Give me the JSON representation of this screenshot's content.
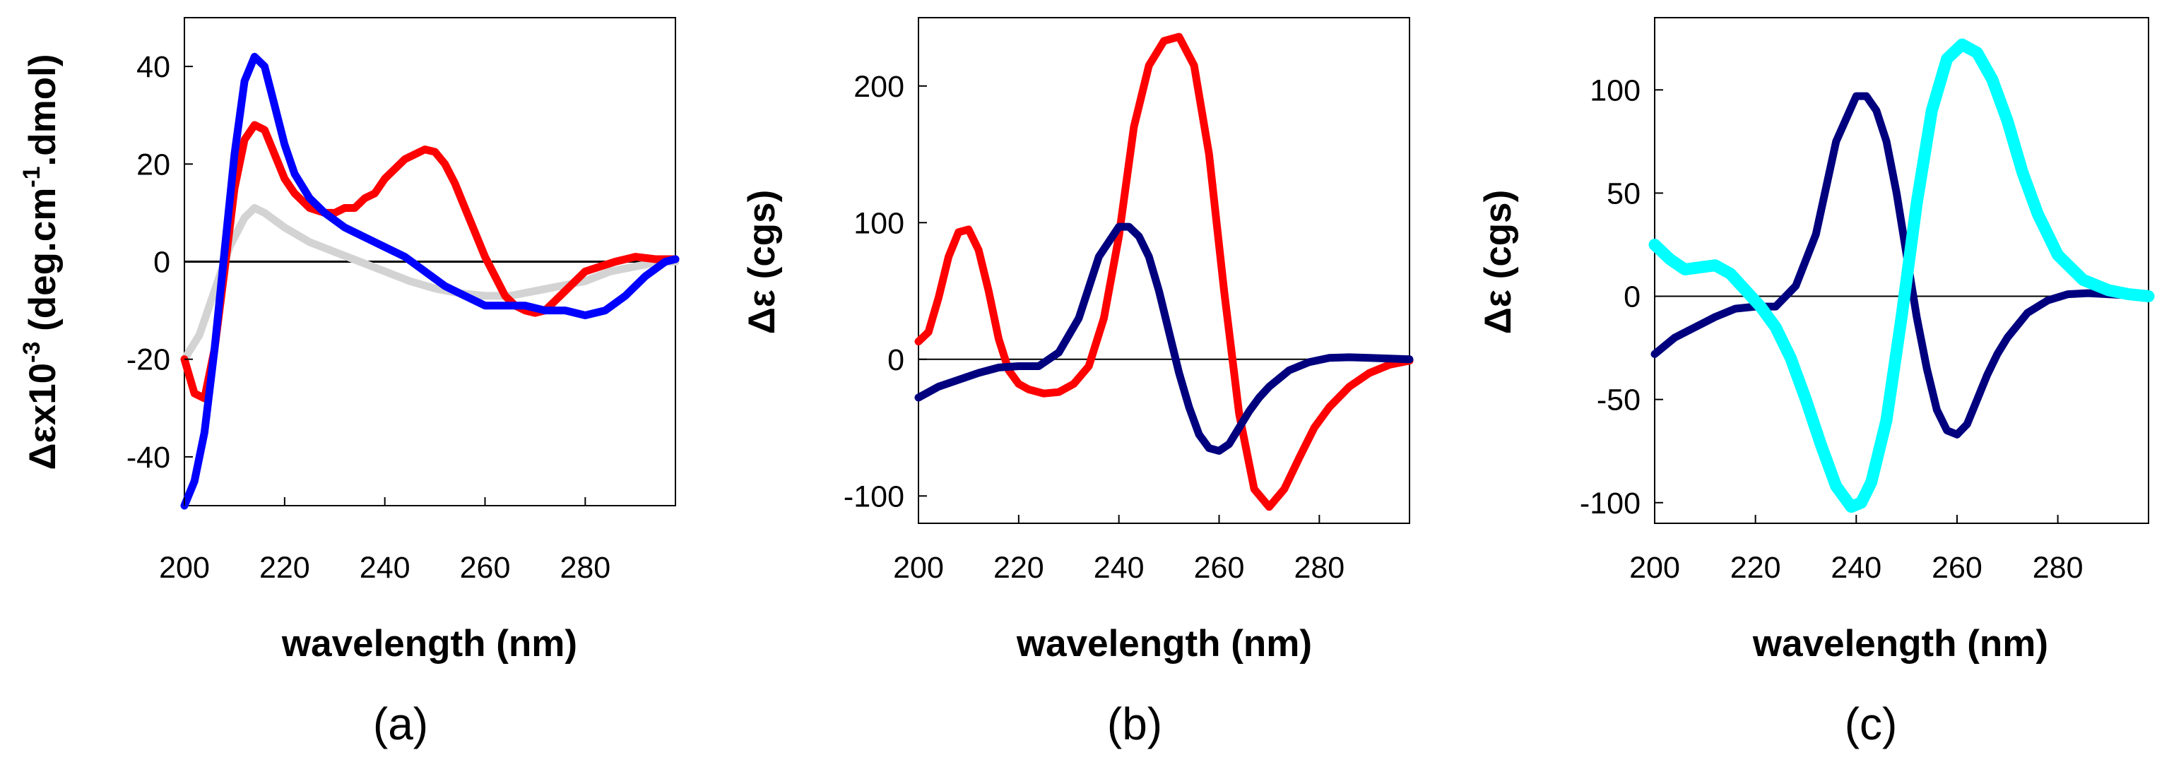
{
  "chart_data": [
    {
      "type": "line",
      "panel_label": "(a)",
      "xlabel": "wavelength (nm)",
      "ylabel_main": "Δεx10",
      "ylabel_exp1": "-3",
      "ylabel_mid": " (deg.cm",
      "ylabel_exp2": "-1",
      "ylabel_end": ".dmol)",
      "xlim": [
        200,
        298
      ],
      "ylim": [
        -50,
        50
      ],
      "xticks": [
        200,
        220,
        240,
        260,
        280
      ],
      "yticks": [
        -40,
        -20,
        0,
        20,
        40
      ],
      "grid": false,
      "zero_line": true,
      "series": [
        {
          "name": "gray",
          "color": "#d3d3d3",
          "x": [
            200,
            203,
            206,
            209,
            212,
            214,
            216,
            220,
            225,
            230,
            235,
            240,
            245,
            250,
            255,
            260,
            265,
            270,
            275,
            280,
            285,
            290,
            295,
            298
          ],
          "y": [
            -20,
            -15,
            -6,
            3,
            9,
            11,
            10,
            7,
            4,
            2,
            0,
            -2,
            -4,
            -5.5,
            -6.5,
            -7,
            -7,
            -6,
            -5,
            -4,
            -2,
            -1,
            0,
            0
          ]
        },
        {
          "name": "red",
          "color": "#ff0000",
          "x": [
            200,
            202,
            204,
            206,
            208,
            210,
            212,
            214,
            216,
            218,
            220,
            222,
            225,
            228,
            230,
            232,
            234,
            236,
            238,
            240,
            242,
            244,
            246,
            248,
            250,
            252,
            254,
            256,
            258,
            260,
            262,
            264,
            266,
            268,
            270,
            272,
            274,
            276,
            278,
            280,
            283,
            286,
            290,
            294,
            298
          ],
          "y": [
            -20,
            -27,
            -28,
            -18,
            -2,
            15,
            25,
            28,
            27,
            22,
            17,
            14,
            11,
            10,
            10,
            11,
            11,
            13,
            14,
            17,
            19,
            21,
            22,
            23,
            22.5,
            20,
            16,
            11,
            6,
            1,
            -3,
            -7,
            -9,
            -10,
            -10.5,
            -10,
            -8,
            -6,
            -4,
            -2,
            -1,
            0,
            1,
            0.5,
            0.5
          ]
        },
        {
          "name": "blue",
          "color": "#0000ff",
          "x": [
            200,
            202,
            204,
            206,
            208,
            210,
            212,
            214,
            216,
            218,
            220,
            222,
            225,
            228,
            232,
            236,
            240,
            244,
            248,
            252,
            256,
            260,
            264,
            268,
            272,
            276,
            280,
            284,
            288,
            292,
            296,
            298
          ],
          "y": [
            -50,
            -45,
            -35,
            -18,
            2,
            22,
            37,
            42,
            40,
            32,
            24,
            18,
            13,
            10,
            7,
            5,
            3,
            1,
            -2,
            -5,
            -7,
            -9,
            -9,
            -9,
            -10,
            -10,
            -11,
            -10,
            -7,
            -3,
            0,
            0.5
          ]
        }
      ]
    },
    {
      "type": "line",
      "panel_label": "(b)",
      "xlabel": "wavelength (nm)",
      "ylabel": "Δε (cgs)",
      "xlim": [
        200,
        298
      ],
      "ylim": [
        -120,
        250
      ],
      "xticks": [
        200,
        220,
        240,
        260,
        280
      ],
      "yticks": [
        -100,
        0,
        100,
        200
      ],
      "grid": false,
      "zero_line": true,
      "series": [
        {
          "name": "red",
          "color": "#ff0000",
          "x": [
            200,
            202,
            204,
            206,
            208,
            210,
            212,
            214,
            216,
            218,
            220,
            222,
            225,
            228,
            231,
            234,
            237,
            240,
            243,
            246,
            249,
            252,
            255,
            258,
            261,
            264,
            267,
            270,
            273,
            276,
            279,
            282,
            286,
            290,
            294,
            298
          ],
          "y": [
            13,
            20,
            45,
            75,
            93,
            95,
            80,
            50,
            15,
            -8,
            -18,
            -22,
            -25,
            -24,
            -18,
            -5,
            30,
            90,
            170,
            215,
            233,
            236,
            215,
            150,
            50,
            -40,
            -95,
            -108,
            -95,
            -72,
            -50,
            -35,
            -20,
            -10,
            -4,
            -1
          ]
        },
        {
          "name": "navy",
          "color": "#00007f",
          "x": [
            200,
            204,
            208,
            212,
            216,
            220,
            224,
            228,
            232,
            236,
            240,
            242,
            244,
            246,
            248,
            250,
            252,
            254,
            256,
            258,
            260,
            262,
            264,
            266,
            268,
            270,
            274,
            278,
            282,
            286,
            290,
            294,
            298
          ],
          "y": [
            -28,
            -20,
            -15,
            -10,
            -6,
            -5,
            -5,
            5,
            30,
            75,
            97,
            97,
            90,
            75,
            50,
            20,
            -10,
            -35,
            -55,
            -65,
            -67,
            -62,
            -50,
            -38,
            -28,
            -20,
            -8,
            -2,
            1,
            1.5,
            1,
            0.5,
            0
          ]
        }
      ]
    },
    {
      "type": "line",
      "panel_label": "(c)",
      "xlabel": "wavelength (nm)",
      "ylabel": "Δε (cgs)",
      "xlim": [
        200,
        298
      ],
      "ylim": [
        -110,
        135
      ],
      "xticks": [
        200,
        220,
        240,
        260,
        280
      ],
      "yticks": [
        -100,
        -50,
        0,
        50,
        100
      ],
      "grid": false,
      "zero_line": true,
      "series": [
        {
          "name": "navy",
          "color": "#00007f",
          "x": [
            200,
            204,
            208,
            212,
            216,
            220,
            224,
            228,
            232,
            236,
            240,
            242,
            244,
            246,
            248,
            250,
            252,
            254,
            256,
            258,
            260,
            262,
            264,
            266,
            268,
            270,
            274,
            278,
            282,
            286,
            290,
            294,
            298
          ],
          "y": [
            -28,
            -20,
            -15,
            -10,
            -6,
            -5,
            -5,
            5,
            30,
            75,
            97,
            97,
            90,
            75,
            50,
            20,
            -10,
            -35,
            -55,
            -65,
            -67,
            -62,
            -50,
            -38,
            -28,
            -20,
            -8,
            -2,
            1,
            1.5,
            1,
            0.5,
            0
          ]
        },
        {
          "name": "cyan",
          "color": "#00ffff",
          "x": [
            200,
            203,
            206,
            209,
            212,
            215,
            218,
            221,
            224,
            227,
            230,
            233,
            236,
            239,
            241,
            243,
            246,
            249,
            252,
            255,
            258,
            261,
            264,
            267,
            270,
            273,
            276,
            280,
            285,
            290,
            294,
            298
          ],
          "y": [
            25,
            18,
            13,
            14,
            15,
            11,
            3,
            -5,
            -15,
            -30,
            -50,
            -72,
            -92,
            -102,
            -100,
            -90,
            -60,
            -10,
            45,
            90,
            115,
            122,
            118,
            105,
            85,
            60,
            40,
            20,
            8,
            3,
            1,
            0
          ]
        }
      ]
    }
  ]
}
